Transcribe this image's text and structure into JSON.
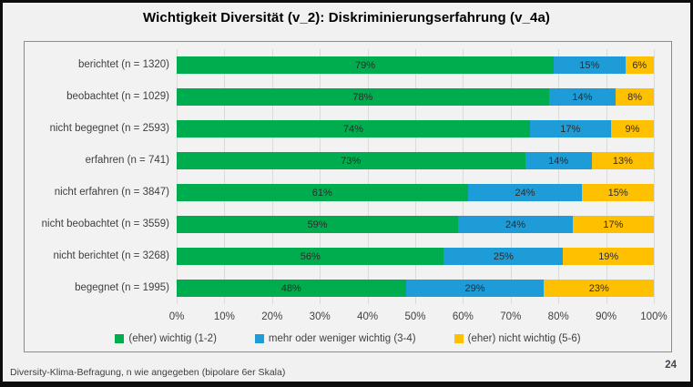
{
  "slide": {
    "title": "Wichtigkeit Diversität (v_2): Diskriminierungserfahrung (v_4a)",
    "footer": "Diversity-Klima-Befragung, n wie angegeben (bipolare 6er Skala)",
    "page_number": "24"
  },
  "chart_data": {
    "type": "bar",
    "orientation": "horizontal",
    "stacked": true,
    "title": "Wichtigkeit Diversität (v_2): Diskriminierungserfahrung (v_4a)",
    "categories": [
      "berichtet (n = 1320)",
      "beobachtet (n = 1029)",
      "nicht begegnet (n = 2593)",
      "erfahren (n = 741)",
      "nicht erfahren (n = 3847)",
      "nicht beobachtet (n = 3559)",
      "nicht berichtet (n = 3268)",
      "begegnet (n = 1995)"
    ],
    "series": [
      {
        "name": "(eher) wichtig (1-2)",
        "color": "#00ad4e",
        "values": [
          79,
          78,
          74,
          73,
          61,
          59,
          56,
          48
        ]
      },
      {
        "name": "mehr oder weniger wichtig (3-4)",
        "color": "#1e9cd7",
        "values": [
          15,
          14,
          17,
          14,
          24,
          24,
          25,
          29
        ]
      },
      {
        "name": "(eher) nicht wichtig (5-6)",
        "color": "#ffc000",
        "values": [
          6,
          8,
          9,
          13,
          15,
          17,
          19,
          23
        ]
      }
    ],
    "value_suffix": "%",
    "xlim": [
      0,
      100
    ],
    "x_ticks": [
      "0%",
      "10%",
      "20%",
      "30%",
      "40%",
      "50%",
      "60%",
      "70%",
      "80%",
      "90%",
      "100%"
    ],
    "grid": true,
    "legend_position": "bottom"
  }
}
